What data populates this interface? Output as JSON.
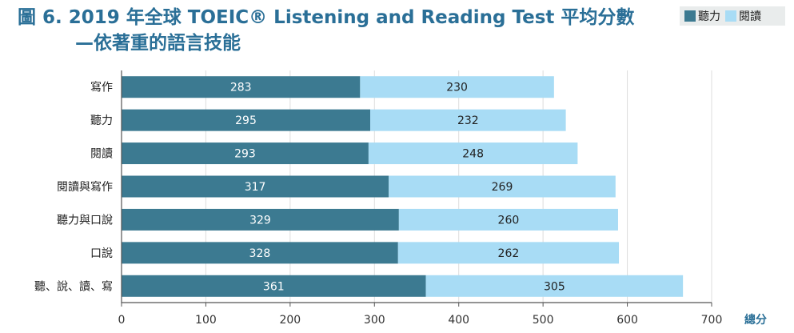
{
  "title": {
    "line1": "圖 6. 2019 年全球 TOEIC® Listening and Reading Test 平均分數",
    "line2": "—依著重的語言技能"
  },
  "legend": [
    {
      "name": "聽力",
      "color": "#3c7a91"
    },
    {
      "name": "閱讀",
      "color": "#a8dcf5"
    }
  ],
  "chart_data": {
    "type": "bar",
    "orientation": "horizontal",
    "stacked": true,
    "categories": [
      "寫作",
      "聽力",
      "閱讀",
      "閱讀與寫作",
      "聽力與口說",
      "口說",
      "聽、說、讀、寫"
    ],
    "series": [
      {
        "name": "聽力",
        "color": "#3c7a91",
        "label_color": "#ffffff",
        "values": [
          283,
          295,
          293,
          317,
          329,
          328,
          361
        ]
      },
      {
        "name": "閱讀",
        "color": "#a8dcf5",
        "label_color": "#222222",
        "values": [
          230,
          232,
          248,
          269,
          260,
          262,
          305
        ]
      }
    ],
    "xlim": [
      0,
      700
    ],
    "xticks": [
      0,
      100,
      200,
      300,
      400,
      500,
      600,
      700
    ],
    "xlabel": "總分",
    "grid": "vertical"
  }
}
